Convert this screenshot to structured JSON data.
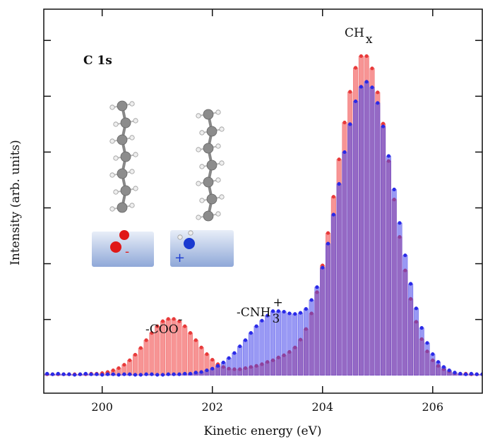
{
  "chart_data": {
    "type": "bar",
    "xlabel": "Kinetic energy (eV)",
    "ylabel": "Intensity (arb. units)",
    "panel_label": "C 1s",
    "inset_labels": [
      "-",
      "+"
    ],
    "annotations": [
      {
        "text": "CH",
        "sub": "x"
      },
      {
        "text": "-COO",
        "sup": "-"
      },
      {
        "text": "-CNH",
        "sub": "3",
        "sup": "+"
      }
    ],
    "xlim": [
      198.94,
      206.9
    ],
    "ylim": [
      -0.32,
      6.56
    ],
    "xticks": [
      200,
      202,
      204,
      206
    ],
    "yticks": [
      1,
      2,
      3,
      4,
      5,
      6
    ],
    "x": [
      199.0,
      199.1,
      199.2,
      199.3,
      199.4,
      199.5,
      199.6,
      199.7,
      199.8,
      199.9,
      200.0,
      200.1,
      200.2,
      200.3,
      200.4,
      200.5,
      200.6,
      200.7,
      200.8,
      200.9,
      201.0,
      201.1,
      201.2,
      201.3,
      201.4,
      201.5,
      201.6,
      201.7,
      201.8,
      201.9,
      202.0,
      202.1,
      202.2,
      202.3,
      202.4,
      202.5,
      202.6,
      202.7,
      202.8,
      202.9,
      203.0,
      203.1,
      203.2,
      203.3,
      203.4,
      203.5,
      203.6,
      203.7,
      203.8,
      203.9,
      204.0,
      204.1,
      204.2,
      204.3,
      204.4,
      204.5,
      204.6,
      204.7,
      204.8,
      204.9,
      205.0,
      205.1,
      205.2,
      205.3,
      205.4,
      205.5,
      205.6,
      205.7,
      205.8,
      205.9,
      206.0,
      206.1,
      206.2,
      206.3,
      206.4,
      206.5,
      206.6,
      206.7,
      206.8,
      206.9
    ],
    "series": [
      {
        "color": "#e83a3a",
        "fill": "rgba(242,90,90,0.65)",
        "values": [
          0.02,
          0.02,
          0.02,
          0.02,
          0.02,
          0.02,
          0.02,
          0.02,
          0.03,
          0.03,
          0.04,
          0.06,
          0.09,
          0.13,
          0.19,
          0.27,
          0.37,
          0.49,
          0.63,
          0.76,
          0.88,
          0.97,
          1.01,
          1.01,
          0.97,
          0.88,
          0.76,
          0.63,
          0.5,
          0.38,
          0.28,
          0.2,
          0.15,
          0.12,
          0.11,
          0.11,
          0.13,
          0.15,
          0.17,
          0.2,
          0.24,
          0.27,
          0.32,
          0.36,
          0.42,
          0.5,
          0.64,
          0.83,
          1.11,
          1.49,
          1.97,
          2.55,
          3.2,
          3.87,
          4.53,
          5.08,
          5.51,
          5.72,
          5.72,
          5.5,
          5.07,
          4.51,
          3.84,
          3.15,
          2.48,
          1.88,
          1.37,
          0.96,
          0.65,
          0.43,
          0.27,
          0.17,
          0.11,
          0.07,
          0.04,
          0.03,
          0.03,
          0.02,
          0.02,
          0.02
        ]
      },
      {
        "color": "#2a2ae8",
        "fill": "rgba(70,70,235,0.55)",
        "values": [
          0.03,
          0.02,
          0.03,
          0.02,
          0.02,
          0.01,
          0.02,
          0.03,
          0.02,
          0.02,
          0.01,
          0.02,
          0.02,
          0.01,
          0.02,
          0.02,
          0.01,
          0.01,
          0.02,
          0.02,
          0.01,
          0.01,
          0.02,
          0.02,
          0.02,
          0.03,
          0.03,
          0.05,
          0.06,
          0.09,
          0.12,
          0.17,
          0.23,
          0.31,
          0.4,
          0.52,
          0.63,
          0.76,
          0.88,
          0.98,
          1.07,
          1.15,
          1.15,
          1.14,
          1.11,
          1.1,
          1.12,
          1.19,
          1.35,
          1.58,
          1.93,
          2.36,
          2.88,
          3.43,
          4.0,
          4.5,
          4.91,
          5.17,
          5.26,
          5.16,
          4.88,
          4.46,
          3.93,
          3.33,
          2.73,
          2.15,
          1.64,
          1.2,
          0.85,
          0.58,
          0.38,
          0.24,
          0.15,
          0.09,
          0.05,
          0.03,
          0.02,
          0.03,
          0.02,
          0.02
        ]
      }
    ]
  }
}
